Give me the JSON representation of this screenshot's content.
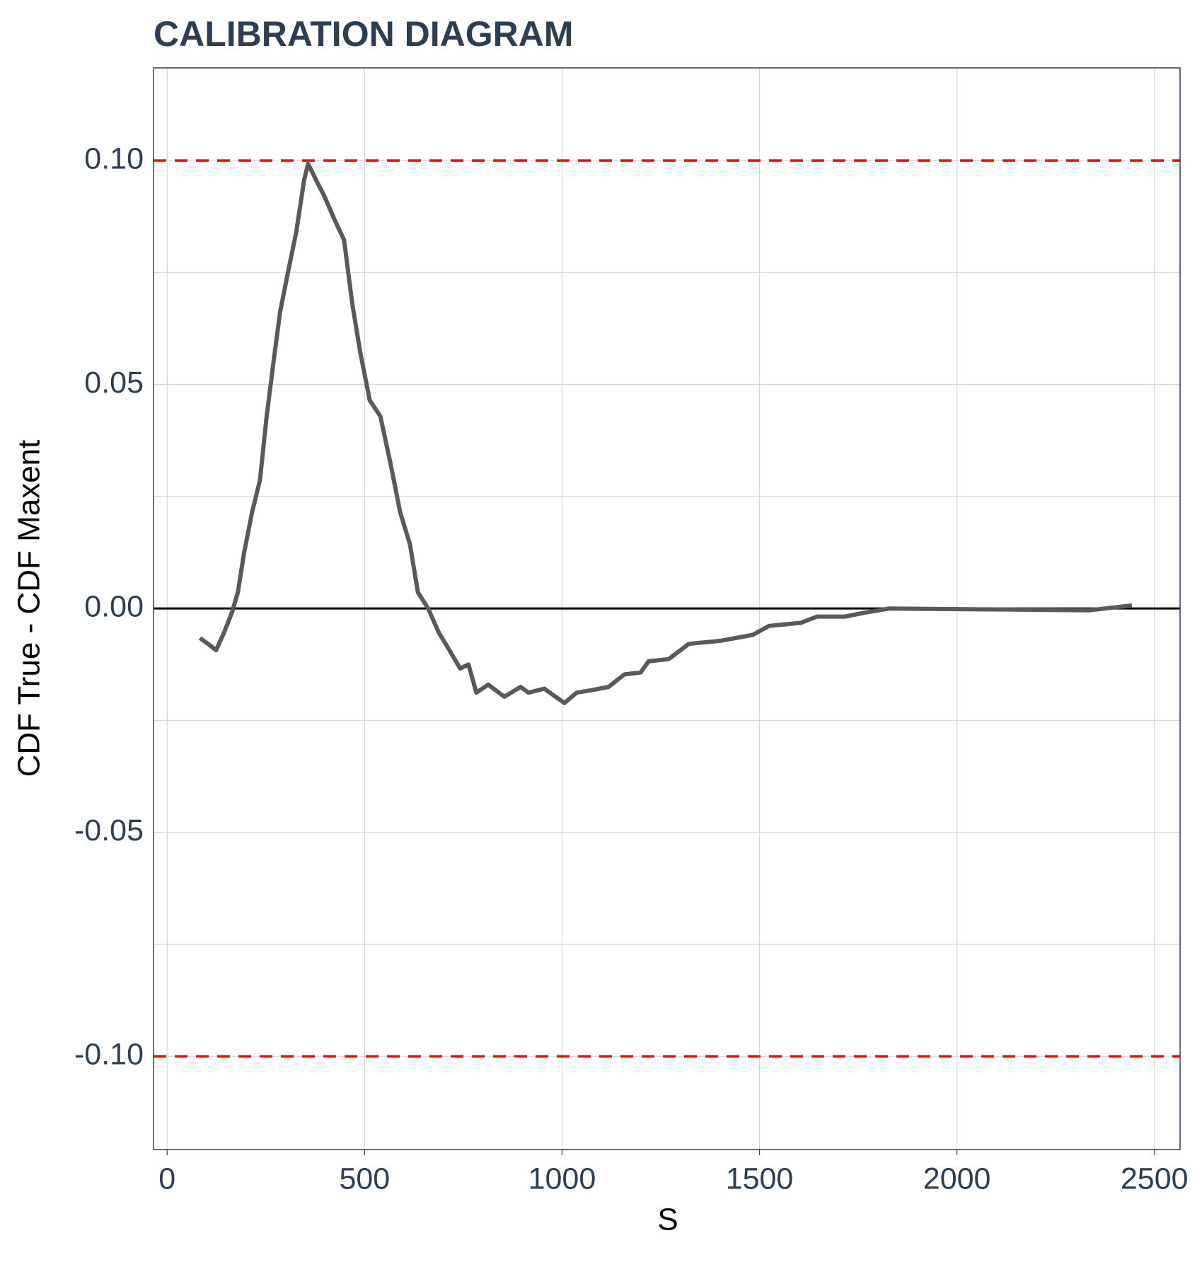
{
  "chart_data": {
    "type": "line",
    "title": "CALIBRATION DIAGRAM",
    "x_label": "S",
    "y_label": "CDF True - CDF Maxent",
    "x": [
      83,
      108,
      124,
      144,
      164,
      179,
      195,
      215,
      235,
      252,
      270,
      286,
      306,
      327,
      347,
      357,
      377,
      398,
      424,
      448,
      469,
      489,
      513,
      540,
      566,
      590,
      615,
      635,
      661,
      688,
      712,
      742,
      763,
      783,
      813,
      854,
      895,
      915,
      955,
      1006,
      1037,
      1077,
      1118,
      1158,
      1199,
      1219,
      1270,
      1321,
      1402,
      1483,
      1524,
      1605,
      1646,
      1717,
      1768,
      1829,
      2336,
      2443
    ],
    "series": [
      {
        "color": "#595959",
        "values": [
          -0.0066,
          -0.0082,
          -0.0093,
          -0.0054,
          -0.0009,
          0.0036,
          0.0125,
          0.0215,
          0.0286,
          0.0429,
          0.0555,
          0.0662,
          0.0751,
          0.0841,
          0.0957,
          0.0993,
          0.0957,
          0.0921,
          0.0868,
          0.0823,
          0.068,
          0.0572,
          0.0465,
          0.0429,
          0.0322,
          0.0215,
          0.0143,
          0.0036,
          0,
          -0.0054,
          -0.0089,
          -0.0134,
          -0.0125,
          -0.0188,
          -0.017,
          -0.0197,
          -0.0175,
          -0.0188,
          -0.0179,
          -0.0211,
          -0.0188,
          -0.0182,
          -0.0175,
          -0.0147,
          -0.0143,
          -0.0118,
          -0.0113,
          -0.0079,
          -0.0072,
          -0.0059,
          -0.0039,
          -0.0032,
          -0.0018,
          -0.0018,
          -0.0009,
          0,
          -0.0004,
          0.0007
        ]
      }
    ],
    "xlim": [
      -34.5,
      2565
    ],
    "ylim": [
      -0.1208,
      0.1207
    ],
    "xticks": [
      0,
      500,
      1000,
      1500,
      2000,
      2500
    ],
    "yticks": [
      {
        "value": 0.1,
        "label": "0.10"
      },
      {
        "value": 0.05,
        "label": "0.05"
      },
      {
        "value": 0,
        "label": "0.00"
      },
      {
        "value": -0.05,
        "label": "-0.05"
      },
      {
        "value": -0.1,
        "label": "-0.10"
      }
    ],
    "y_minor_grid": [
      0.075,
      0.025,
      -0.025,
      -0.075
    ],
    "grid": true,
    "hlines": [
      {
        "y": 0.1,
        "color": "#ff0000",
        "dashed": true
      },
      {
        "y": -0.1,
        "color": "#ff0000",
        "dashed": true
      },
      {
        "y": 0,
        "color": "#000000",
        "dashed": false
      }
    ]
  }
}
